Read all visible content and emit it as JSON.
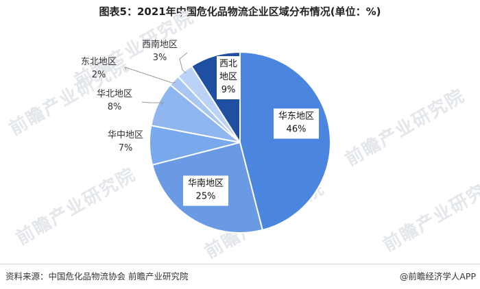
{
  "header": {
    "title": "图表5：2021年中国危化品物流企业区域分布情况(单位：%)"
  },
  "watermark": {
    "text": "前瞻产业研究院"
  },
  "footer": {
    "source": "资料来源：中国危化品物流协会 前瞻产业研究院",
    "brand": "@前瞻经济学人APP"
  },
  "chart_data": {
    "type": "pie",
    "title": "图表5：2021年中国危化品物流企业区域分布情况(单位：%)",
    "unit": "%",
    "start_at": "top, clockwise",
    "slices": [
      {
        "label": "华东地区",
        "value": 46,
        "value_label": "46%",
        "color": "#4a86e0",
        "label_inside": true
      },
      {
        "label": "华南地区",
        "value": 25,
        "value_label": "25%",
        "color": "#6a9ae4",
        "label_inside": true
      },
      {
        "label": "华中地区",
        "value": 7,
        "value_label": "7%",
        "color": "#7aa8ec",
        "label_inside": false
      },
      {
        "label": "华北地区",
        "value": 8,
        "value_label": "8%",
        "color": "#8fb6ef",
        "label_inside": false
      },
      {
        "label": "东北地区",
        "value": 2,
        "value_label": "2%",
        "color": "#a9c7f3",
        "label_inside": false
      },
      {
        "label": "西南地区",
        "value": 3,
        "value_label": "3%",
        "color": "#b9d2f5",
        "label_inside": false
      },
      {
        "label": "西北地区",
        "value": 9,
        "value_label": "9%",
        "color": "#1f4fa0",
        "label_inside": true
      }
    ]
  }
}
